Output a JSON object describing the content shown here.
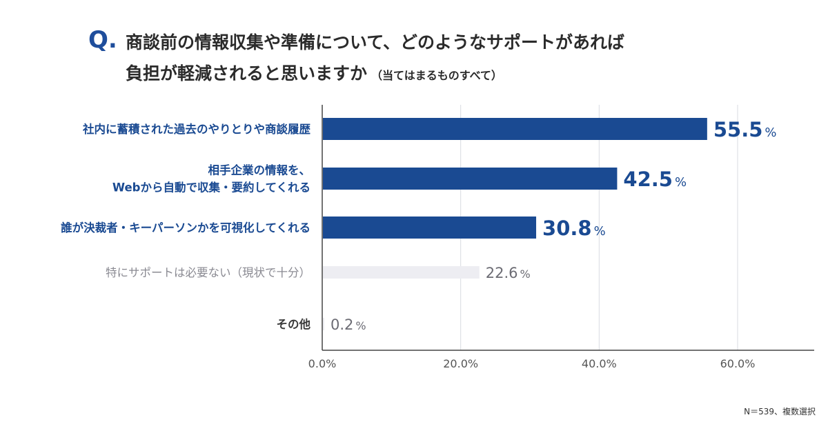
{
  "question": {
    "mark": "Q.",
    "line1": "商談前の情報収集や準備について、どのようなサポートがあれば",
    "line2": "負担が軽減されると思いますか",
    "note": "（当てはまるものすべて）"
  },
  "footnote": "N＝539、複数選択",
  "colors": {
    "highlight_bar": "#1a4a92",
    "muted_bar": "#ededf2",
    "highlight_text": "#1a4a92",
    "muted_text": "#6b6b73",
    "grid": "#d8dbe2",
    "axis": "#444444"
  },
  "chart_data": {
    "type": "bar",
    "orientation": "horizontal",
    "categories": [
      [
        "社内に蓄積された過去のやりとりや商談履歴"
      ],
      [
        "相手企業の情報を、",
        "Webから自動で収集・要約してくれる"
      ],
      [
        "誰が決裁者・キーパーソンかを可視化してくれる"
      ],
      [
        "特にサポートは必要ない（現状で十分）"
      ],
      [
        "その他"
      ]
    ],
    "values": [
      55.5,
      42.5,
      30.8,
      22.6,
      0.2
    ],
    "value_labels": [
      "55.5",
      "42.5",
      "30.8",
      "22.6",
      "0.2"
    ],
    "unit": "%",
    "highlighted": [
      true,
      true,
      true,
      false,
      false
    ],
    "x_ticks": [
      "0.0%",
      "20.0%",
      "40.0%",
      "60.0%"
    ],
    "x_tick_values": [
      0,
      20,
      40,
      60
    ],
    "xlim": [
      0,
      70
    ],
    "grid": true
  }
}
